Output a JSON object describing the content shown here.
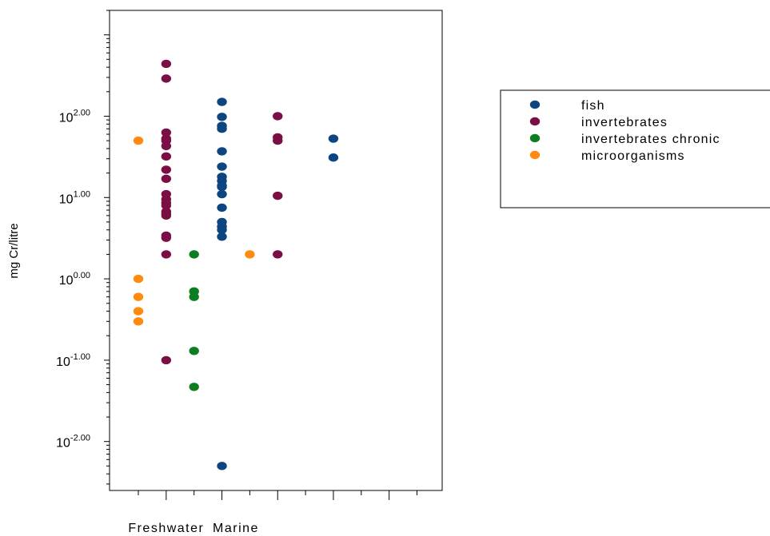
{
  "chart_data": {
    "type": "scatter",
    "title": "",
    "xlabel": "",
    "ylabel": "mg Cr/litre",
    "yscale": "log",
    "ylim": [
      0.0025,
      2000
    ],
    "y_ticks": [
      {
        "value": 0.01,
        "base": "10",
        "exp": "-2.00"
      },
      {
        "value": 0.1,
        "base": "10",
        "exp": "-1.00"
      },
      {
        "value": 1,
        "base": "10",
        "exp": "0.00"
      },
      {
        "value": 10,
        "base": "10",
        "exp": "1.00"
      },
      {
        "value": 100,
        "base": "10",
        "exp": "2.00"
      }
    ],
    "x_columns": 6,
    "x_labels": [
      {
        "text": "Freshwater",
        "column": 2
      },
      {
        "text": "Marine",
        "column": 4.5
      }
    ],
    "grid": false,
    "legend_position": "right",
    "series": [
      {
        "name": "fish",
        "color": "#0d4580",
        "points": [
          {
            "col": 4,
            "y": 150
          },
          {
            "col": 4,
            "y": 98
          },
          {
            "col": 4,
            "y": 76
          },
          {
            "col": 4,
            "y": 70
          },
          {
            "col": 4,
            "y": 37
          },
          {
            "col": 4,
            "y": 24
          },
          {
            "col": 4,
            "y": 18
          },
          {
            "col": 4,
            "y": 16
          },
          {
            "col": 4,
            "y": 14
          },
          {
            "col": 4,
            "y": 13.5
          },
          {
            "col": 4,
            "y": 11
          },
          {
            "col": 4,
            "y": 7.5
          },
          {
            "col": 4,
            "y": 5
          },
          {
            "col": 4,
            "y": 4.4
          },
          {
            "col": 4,
            "y": 4
          },
          {
            "col": 4,
            "y": 3.3
          },
          {
            "col": 4,
            "y": 0.005
          },
          {
            "col": 8,
            "y": 53
          },
          {
            "col": 8,
            "y": 31
          }
        ]
      },
      {
        "name": "invertebrates",
        "color": "#7a0f45",
        "points": [
          {
            "col": 2,
            "y": 440
          },
          {
            "col": 2,
            "y": 290
          },
          {
            "col": 2,
            "y": 63
          },
          {
            "col": 2,
            "y": 53
          },
          {
            "col": 2,
            "y": 50
          },
          {
            "col": 2,
            "y": 43
          },
          {
            "col": 2,
            "y": 32
          },
          {
            "col": 2,
            "y": 22
          },
          {
            "col": 2,
            "y": 17
          },
          {
            "col": 2,
            "y": 11
          },
          {
            "col": 2,
            "y": 9.5
          },
          {
            "col": 2,
            "y": 8.6
          },
          {
            "col": 2,
            "y": 8
          },
          {
            "col": 2,
            "y": 6.7
          },
          {
            "col": 2,
            "y": 6.3
          },
          {
            "col": 2,
            "y": 6
          },
          {
            "col": 2,
            "y": 3.4
          },
          {
            "col": 2,
            "y": 3.2
          },
          {
            "col": 2,
            "y": 2
          },
          {
            "col": 2,
            "y": 0.1
          },
          {
            "col": 6,
            "y": 100
          },
          {
            "col": 6,
            "y": 55
          },
          {
            "col": 6,
            "y": 50
          },
          {
            "col": 6,
            "y": 10.5
          },
          {
            "col": 6,
            "y": 2
          }
        ]
      },
      {
        "name": "invertebrates chronic",
        "color": "#0d7d20",
        "points": [
          {
            "col": 3,
            "y": 2
          },
          {
            "col": 3,
            "y": 0.7
          },
          {
            "col": 3,
            "y": 0.6
          },
          {
            "col": 3,
            "y": 0.13
          },
          {
            "col": 3,
            "y": 0.047
          }
        ]
      },
      {
        "name": "microorganisms",
        "color": "#ff8a10",
        "points": [
          {
            "col": 1,
            "y": 50
          },
          {
            "col": 1,
            "y": 1
          },
          {
            "col": 1,
            "y": 0.6
          },
          {
            "col": 1,
            "y": 0.4
          },
          {
            "col": 1,
            "y": 0.3
          },
          {
            "col": 5,
            "y": 2
          }
        ]
      }
    ]
  }
}
